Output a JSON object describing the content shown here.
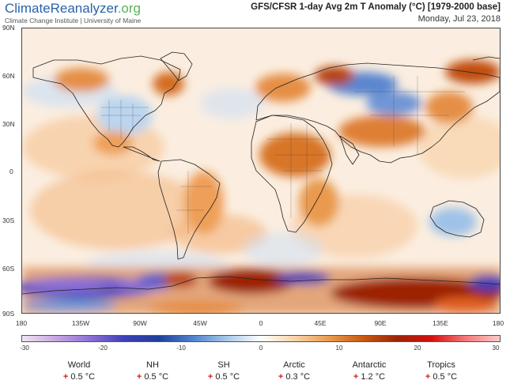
{
  "brand": {
    "name": "ClimateReanalyzer",
    "tld": ".org",
    "institution": "Climate Change Institute | University of Maine"
  },
  "title": "GFS/CFSR 1-day Avg 2m T Anomaly (°C) [1979-2000 base]",
  "date": "Monday, Jul 23, 2018",
  "lat_ticks": [
    "90N",
    "60N",
    "30N",
    "0",
    "30S",
    "60S",
    "90S"
  ],
  "lon_ticks": [
    "180",
    "135W",
    "90W",
    "45W",
    "0",
    "45E",
    "90E",
    "135E",
    "180"
  ],
  "colorbar": {
    "ticks": [
      "-30",
      "-20",
      "-10",
      "0",
      "10",
      "20",
      "30"
    ],
    "colors": [
      "#f0e4f3",
      "#c7a6df",
      "#8d70d6",
      "#3e3fb9",
      "#1f3f9a",
      "#4f83cc",
      "#a8c8ea",
      "#ffffff",
      "#f8d3a8",
      "#e99a4d",
      "#c85a10",
      "#9c2306",
      "#d30f0f",
      "#f57a7a",
      "#fbc9c9"
    ],
    "range": [
      -30,
      30
    ]
  },
  "stats": [
    {
      "label": "World",
      "sign": "+",
      "value": "0.5 °C"
    },
    {
      "label": "NH",
      "sign": "+",
      "value": "0.5 °C"
    },
    {
      "label": "SH",
      "sign": "+",
      "value": "0.5 °C"
    },
    {
      "label": "Arctic",
      "sign": "+",
      "value": "0.3 °C"
    },
    {
      "label": "Antarctic",
      "sign": "+",
      "value": "1.2 °C"
    },
    {
      "label": "Tropics",
      "sign": "+",
      "value": "0.5 °C"
    }
  ]
}
